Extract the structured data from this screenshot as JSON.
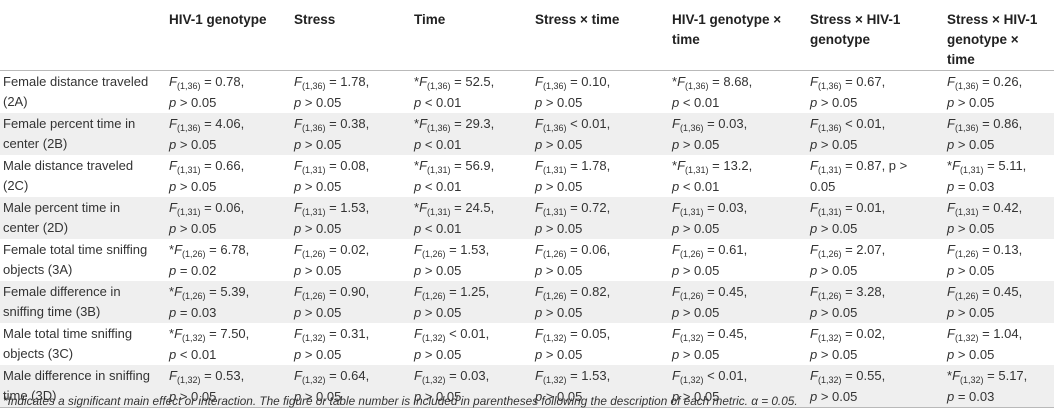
{
  "table": {
    "headers": [
      "",
      "HIV-1 genotype",
      "Stress",
      "Time",
      "Stress × time",
      "HIV-1 genotype × time",
      "Stress × HIV-1 genotype",
      "Stress × HIV-1 genotype × time"
    ],
    "rows": [
      {
        "metric": "Female distance traveled (2A)",
        "cells": [
          {
            "star": "",
            "df": "(1,36)",
            "rest": " = 0.78,",
            "p": "p > 0.05"
          },
          {
            "star": "",
            "df": "(1,36)",
            "rest": " = 1.78,",
            "p": "p > 0.05"
          },
          {
            "star": "*",
            "df": "(1,36)",
            "rest": " = 52.5,",
            "p": "p < 0.01"
          },
          {
            "star": "",
            "df": "(1,36)",
            "rest": " = 0.10,",
            "p": "p > 0.05"
          },
          {
            "star": "*",
            "df": "(1,36)",
            "rest": " = 8.68,",
            "p": "p < 0.01"
          },
          {
            "star": "",
            "df": "(1,36)",
            "rest": " = 0.67,",
            "p": "p > 0.05"
          },
          {
            "star": "",
            "df": "(1,36)",
            "rest": " = 0.26,",
            "p": "p > 0.05"
          }
        ]
      },
      {
        "metric": "Female percent time in center (2B)",
        "cells": [
          {
            "star": "",
            "df": "(1,36)",
            "rest": " = 4.06,",
            "p": "p > 0.05"
          },
          {
            "star": "",
            "df": "(1,36)",
            "rest": " = 0.38,",
            "p": "p > 0.05"
          },
          {
            "star": "*",
            "df": "(1,36)",
            "rest": " = 29.3,",
            "p": "p < 0.01"
          },
          {
            "star": "",
            "df": "(1,36)",
            "rest": " < 0.01,",
            "p": "p > 0.05"
          },
          {
            "star": "",
            "df": "(1,36)",
            "rest": " = 0.03,",
            "p": "p > 0.05"
          },
          {
            "star": "",
            "df": "(1,36)",
            "rest": " < 0.01,",
            "p": "p > 0.05"
          },
          {
            "star": "",
            "df": "(1,36)",
            "rest": " = 0.86,",
            "p": "p > 0.05"
          }
        ]
      },
      {
        "metric": "Male distance traveled (2C)",
        "cells": [
          {
            "star": "",
            "df": "(1,31)",
            "rest": " = 0.66,",
            "p": "p > 0.05"
          },
          {
            "star": "",
            "df": "(1,31)",
            "rest": " = 0.08,",
            "p": "p > 0.05"
          },
          {
            "star": "*",
            "df": "(1,31)",
            "rest": " = 56.9,",
            "p": "p < 0.01"
          },
          {
            "star": "",
            "df": "(1,31)",
            "rest": " = 1.78,",
            "p": "p > 0.05"
          },
          {
            "star": "*",
            "df": "(1,31)",
            "rest": " = 13.2,",
            "p": "p < 0.01"
          },
          {
            "star": "",
            "df": "(1,31)",
            "rest": " = 0.87, p >",
            "p": "0.05"
          },
          {
            "star": "*",
            "df": "(1,31)",
            "rest": " = 5.11,",
            "p": "p = 0.03"
          }
        ]
      },
      {
        "metric": "Male percent time in center (2D)",
        "cells": [
          {
            "star": "",
            "df": "(1,31)",
            "rest": " = 0.06,",
            "p": "p > 0.05"
          },
          {
            "star": "",
            "df": "(1,31)",
            "rest": " = 1.53,",
            "p": "p > 0.05"
          },
          {
            "star": "*",
            "df": "(1,31)",
            "rest": " = 24.5,",
            "p": "p < 0.01"
          },
          {
            "star": "",
            "df": "(1,31)",
            "rest": " = 0.72,",
            "p": "p > 0.05"
          },
          {
            "star": "",
            "df": "(1,31)",
            "rest": " = 0.03,",
            "p": "p > 0.05"
          },
          {
            "star": "",
            "df": "(1,31)",
            "rest": " = 0.01,",
            "p": "p > 0.05"
          },
          {
            "star": "",
            "df": "(1,31)",
            "rest": " = 0.42,",
            "p": "p > 0.05"
          }
        ]
      },
      {
        "metric": "Female total time sniffing objects (3A)",
        "cells": [
          {
            "star": "*",
            "df": "(1,26)",
            "rest": " = 6.78,",
            "p": "p = 0.02"
          },
          {
            "star": "",
            "df": "(1,26)",
            "rest": " = 0.02,",
            "p": "p > 0.05"
          },
          {
            "star": "",
            "df": "(1,26)",
            "rest": " = 1.53,",
            "p": "p > 0.05"
          },
          {
            "star": "",
            "df": "(1,26)",
            "rest": " = 0.06,",
            "p": "p > 0.05"
          },
          {
            "star": "",
            "df": "(1,26)",
            "rest": " = 0.61,",
            "p": "p > 0.05"
          },
          {
            "star": "",
            "df": "(1,26)",
            "rest": " = 2.07,",
            "p": "p > 0.05"
          },
          {
            "star": "",
            "df": "(1,26)",
            "rest": " = 0.13,",
            "p": "p > 0.05"
          }
        ]
      },
      {
        "metric": "Female difference in sniffing time (3B)",
        "cells": [
          {
            "star": "*",
            "df": "(1,26)",
            "rest": " = 5.39,",
            "p": "p = 0.03"
          },
          {
            "star": "",
            "df": "(1,26)",
            "rest": " = 0.90,",
            "p": "p > 0.05"
          },
          {
            "star": "",
            "df": "(1,26)",
            "rest": " = 1.25,",
            "p": "p > 0.05"
          },
          {
            "star": "",
            "df": "(1,26)",
            "rest": " = 0.82,",
            "p": "p > 0.05"
          },
          {
            "star": "",
            "df": "(1,26)",
            "rest": " = 0.45,",
            "p": "p > 0.05"
          },
          {
            "star": "",
            "df": "(1,26)",
            "rest": " = 3.28,",
            "p": "p > 0.05"
          },
          {
            "star": "",
            "df": "(1,26)",
            "rest": " = 0.45,",
            "p": "p > 0.05"
          }
        ]
      },
      {
        "metric": "Male total time sniffing objects (3C)",
        "cells": [
          {
            "star": "*",
            "df": "(1,32)",
            "rest": " = 7.50,",
            "p": "p < 0.01"
          },
          {
            "star": "",
            "df": "(1,32)",
            "rest": " = 0.31,",
            "p": "p > 0.05"
          },
          {
            "star": "",
            "df": "(1,32)",
            "rest": " < 0.01,",
            "p": "p > 0.05"
          },
          {
            "star": "",
            "df": "(1,32)",
            "rest": " = 0.05,",
            "p": "p > 0.05"
          },
          {
            "star": "",
            "df": "(1,32)",
            "rest": " = 0.45,",
            "p": "p > 0.05"
          },
          {
            "star": "",
            "df": "(1,32)",
            "rest": " = 0.02,",
            "p": "p > 0.05"
          },
          {
            "star": "",
            "df": "(1,32)",
            "rest": " = 1.04,",
            "p": "p > 0.05"
          }
        ]
      },
      {
        "metric": "Male difference in sniffing time (3D)",
        "cells": [
          {
            "star": "",
            "df": "(1,32)",
            "rest": " = 0.53,",
            "p": "p > 0.05"
          },
          {
            "star": "",
            "df": "(1,32)",
            "rest": " = 0.64,",
            "p": "p > 0.05"
          },
          {
            "star": "",
            "df": "(1,32)",
            "rest": " = 0.03,",
            "p": "p > 0.05"
          },
          {
            "star": "",
            "df": "(1,32)",
            "rest": " = 1.53,",
            "p": "p > 0.05"
          },
          {
            "star": "",
            "df": "(1,32)",
            "rest": " < 0.01,",
            "p": "p > 0.05"
          },
          {
            "star": "",
            "df": "(1,32)",
            "rest": " = 0.55,",
            "p": "p > 0.05"
          },
          {
            "star": "*",
            "df": "(1,32)",
            "rest": " = 5.17,",
            "p": "p = 0.03"
          }
        ]
      }
    ],
    "stat_letter": "F"
  },
  "footnote": "*Indicates a significant main effect or interaction. The figure or table number is included in parentheses following the description of each metric. α = 0.05."
}
